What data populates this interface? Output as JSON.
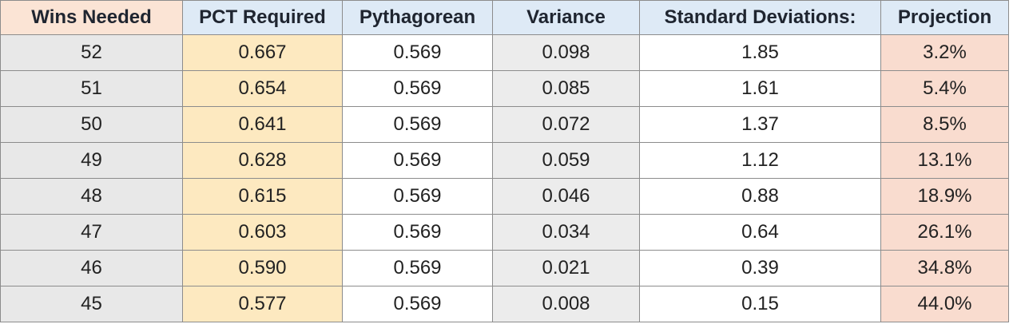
{
  "chart_data": {
    "type": "table",
    "columns": [
      {
        "label": "Wins Needed",
        "header_bg": "#fbe4d5",
        "cell_bg": "#e8e8e8"
      },
      {
        "label": "PCT Required",
        "header_bg": "#deeaf6",
        "cell_bg": "#fde9c0"
      },
      {
        "label": "Pythagorean",
        "header_bg": "#deeaf6",
        "cell_bg": "#ffffff"
      },
      {
        "label": "Variance",
        "header_bg": "#deeaf6",
        "cell_bg": "#ececec"
      },
      {
        "label": "Standard Deviations:",
        "header_bg": "#deeaf6",
        "cell_bg": "#ffffff"
      },
      {
        "label": "Projection",
        "header_bg": "#deeaf6",
        "cell_bg": "#f9dccf"
      }
    ],
    "rows": [
      [
        "52",
        "0.667",
        "0.569",
        "0.098",
        "1.85",
        "3.2%"
      ],
      [
        "51",
        "0.654",
        "0.569",
        "0.085",
        "1.61",
        "5.4%"
      ],
      [
        "50",
        "0.641",
        "0.569",
        "0.072",
        "1.37",
        "8.5%"
      ],
      [
        "49",
        "0.628",
        "0.569",
        "0.059",
        "1.12",
        "13.1%"
      ],
      [
        "48",
        "0.615",
        "0.569",
        "0.046",
        "0.88",
        "18.9%"
      ],
      [
        "47",
        "0.603",
        "0.569",
        "0.034",
        "0.64",
        "26.1%"
      ],
      [
        "46",
        "0.590",
        "0.569",
        "0.021",
        "0.39",
        "34.8%"
      ],
      [
        "45",
        "0.577",
        "0.569",
        "0.008",
        "0.15",
        "44.0%"
      ]
    ]
  }
}
